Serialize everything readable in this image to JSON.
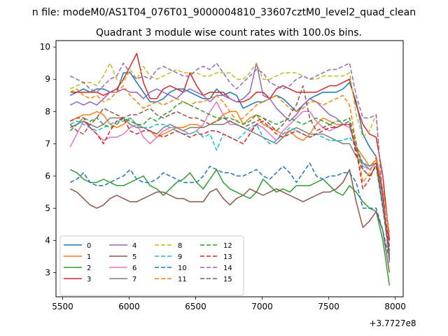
{
  "chart_data": {
    "type": "line",
    "suptitle": "n file: modeM0/AS1T04_076T01_9000004810_33607cztM0_level2_quad_clean",
    "title": "Quadrant 3 module wise count rates with 100.0s bins.",
    "xlabel": "",
    "ylabel": "",
    "offset_label": "+3.7727e8",
    "xlim": [
      5450,
      8060
    ],
    "ylim": [
      2.25,
      10.2
    ],
    "xticks": [
      5500,
      6000,
      6500,
      7000,
      7500,
      8000
    ],
    "yticks": [
      3,
      4,
      5,
      6,
      7,
      8,
      9,
      10
    ],
    "legend_position": "lower-left",
    "x": [
      5557,
      5607,
      5657,
      5707,
      5757,
      5807,
      5857,
      5907,
      5957,
      6007,
      6057,
      6107,
      6157,
      6207,
      6257,
      6307,
      6357,
      6407,
      6457,
      6507,
      6557,
      6607,
      6657,
      6707,
      6757,
      6807,
      6857,
      6907,
      6957,
      7007,
      7057,
      7107,
      7157,
      7207,
      7257,
      7307,
      7357,
      7407,
      7457,
      7507,
      7557,
      7607,
      7657,
      7707,
      7757,
      7807,
      7857,
      7907,
      7957
    ],
    "series": [
      {
        "name": "0",
        "color": "#1f77b4",
        "dash": "",
        "values": [
          8.5,
          8.6,
          8.7,
          8.6,
          8.7,
          8.7,
          8.6,
          8.6,
          9.2,
          9.2,
          8.9,
          8.6,
          8.3,
          8.3,
          8.4,
          8.6,
          8.7,
          8.7,
          8.6,
          8.5,
          8.4,
          8.4,
          8.7,
          8.5,
          8.6,
          8.5,
          8.1,
          8.2,
          8.3,
          8.3,
          8.4,
          8.5,
          8.4,
          8.2,
          8.0,
          8.2,
          8.4,
          8.5,
          8.6,
          8.6,
          8.6,
          8.7,
          8.9,
          8.3,
          7.3,
          6.9,
          6.6,
          5.5,
          3.4
        ]
      },
      {
        "name": "1",
        "color": "#ff7f0e",
        "dash": "",
        "values": [
          7.7,
          7.8,
          7.9,
          7.9,
          8.0,
          7.9,
          7.6,
          7.5,
          7.6,
          7.8,
          7.6,
          7.5,
          7.4,
          7.2,
          7.3,
          7.4,
          7.5,
          7.5,
          7.6,
          7.6,
          7.5,
          7.6,
          7.7,
          7.9,
          8.0,
          8.0,
          7.6,
          7.8,
          7.9,
          7.6,
          7.5,
          7.4,
          7.3,
          7.4,
          7.2,
          7.1,
          7.3,
          7.6,
          7.8,
          7.7,
          7.6,
          7.6,
          7.6,
          6.9,
          6.6,
          6.3,
          6.5,
          5.3,
          3.5
        ]
      },
      {
        "name": "2",
        "color": "#2ca02c",
        "dash": "",
        "values": [
          6.2,
          6.1,
          5.9,
          5.8,
          5.8,
          5.9,
          5.8,
          5.7,
          5.7,
          5.8,
          5.9,
          6.0,
          5.7,
          5.6,
          5.4,
          5.6,
          5.8,
          5.9,
          6.1,
          5.8,
          5.6,
          5.9,
          6.2,
          5.8,
          5.6,
          5.5,
          5.4,
          5.3,
          5.5,
          5.9,
          5.7,
          5.5,
          5.6,
          5.5,
          5.7,
          5.7,
          5.7,
          5.8,
          5.9,
          5.7,
          5.5,
          5.4,
          5.7,
          5.5,
          5.2,
          5.0,
          4.9,
          4.0,
          2.6
        ]
      },
      {
        "name": "3",
        "color": "#d62728",
        "dash": "",
        "values": [
          8.6,
          8.6,
          8.6,
          8.6,
          8.6,
          8.5,
          8.6,
          8.7,
          9.0,
          9.4,
          9.8,
          8.9,
          8.4,
          8.4,
          8.7,
          8.8,
          8.7,
          8.6,
          9.2,
          8.8,
          8.5,
          8.6,
          8.6,
          8.6,
          8.4,
          8.3,
          8.3,
          8.4,
          8.6,
          8.6,
          8.4,
          8.7,
          8.8,
          8.7,
          8.6,
          8.6,
          8.6,
          8.6,
          8.7,
          8.8,
          8.8,
          8.9,
          9.0,
          8.2,
          7.6,
          7.3,
          7.2,
          6.0,
          4.0
        ]
      },
      {
        "name": "4",
        "color": "#9467bd",
        "dash": "",
        "values": [
          8.2,
          8.3,
          8.2,
          8.3,
          8.2,
          8.4,
          8.6,
          8.6,
          8.7,
          8.6,
          8.6,
          8.4,
          8.6,
          8.7,
          8.6,
          8.5,
          8.4,
          8.6,
          8.7,
          8.6,
          8.5,
          8.3,
          8.5,
          8.5,
          8.4,
          8.3,
          8.4,
          8.6,
          9.5,
          8.5,
          8.4,
          8.1,
          7.9,
          7.7,
          7.9,
          8.2,
          8.4,
          8.3,
          8.1,
          7.9,
          7.8,
          7.6,
          7.6,
          6.8,
          6.4,
          6.2,
          6.4,
          5.2,
          3.8
        ]
      },
      {
        "name": "5",
        "color": "#8c564b",
        "dash": "",
        "values": [
          5.6,
          5.5,
          5.3,
          5.1,
          5.0,
          5.1,
          5.3,
          5.4,
          5.3,
          5.2,
          5.2,
          5.3,
          5.4,
          5.5,
          5.5,
          5.4,
          5.3,
          5.3,
          5.2,
          5.2,
          5.2,
          5.5,
          5.6,
          5.3,
          5.1,
          5.3,
          5.4,
          5.6,
          5.5,
          5.4,
          5.5,
          5.6,
          5.5,
          5.4,
          5.3,
          5.2,
          5.3,
          5.4,
          5.5,
          5.5,
          5.6,
          5.8,
          6.2,
          5.2,
          4.4,
          4.6,
          4.9,
          4.3,
          3.0
        ]
      },
      {
        "name": "6",
        "color": "#e377c2",
        "dash": "",
        "values": [
          6.9,
          7.3,
          7.7,
          7.5,
          7.3,
          7.1,
          7.2,
          7.2,
          7.3,
          7.5,
          7.6,
          7.2,
          7.0,
          7.2,
          7.4,
          7.5,
          7.5,
          7.4,
          7.3,
          7.4,
          7.6,
          8.0,
          8.3,
          7.9,
          7.6,
          7.6,
          7.5,
          7.4,
          7.6,
          7.5,
          7.3,
          7.1,
          7.4,
          7.6,
          7.8,
          8.0,
          8.0,
          7.7,
          7.5,
          7.4,
          7.5,
          7.6,
          7.5,
          6.9,
          6.3,
          6.2,
          6.4,
          5.3,
          3.6
        ]
      },
      {
        "name": "7",
        "color": "#7f7f7f",
        "dash": "",
        "values": [
          7.5,
          7.6,
          7.7,
          7.6,
          7.5,
          7.6,
          7.8,
          7.8,
          7.8,
          7.6,
          7.5,
          7.5,
          7.4,
          7.3,
          7.5,
          7.6,
          7.5,
          7.4,
          7.5,
          7.5,
          7.5,
          7.6,
          7.6,
          7.6,
          7.7,
          7.6,
          7.5,
          7.4,
          7.3,
          7.2,
          7.1,
          7.0,
          7.2,
          7.4,
          7.5,
          7.4,
          7.3,
          7.3,
          7.3,
          7.2,
          7.1,
          7.0,
          7.0,
          6.6,
          6.4,
          6.3,
          6.4,
          5.4,
          3.4
        ]
      },
      {
        "name": "8",
        "color": "#bcbd22",
        "dash": "6,3",
        "values": [
          8.7,
          8.8,
          8.9,
          8.9,
          8.8,
          9.1,
          9.5,
          9.0,
          8.9,
          9.3,
          9.0,
          9.4,
          9.1,
          9.0,
          9.1,
          9.2,
          9.3,
          9.2,
          9.2,
          9.2,
          9.1,
          9.1,
          9.2,
          9.2,
          9.2,
          9.0,
          9.0,
          9.2,
          9.5,
          9.0,
          9.0,
          9.1,
          9.2,
          9.2,
          9.2,
          9.1,
          9.0,
          9.0,
          9.1,
          9.1,
          9.1,
          9.1,
          9.2,
          7.9,
          7.2,
          7.4,
          7.9,
          5.2,
          3.5
        ]
      },
      {
        "name": "9",
        "color": "#17becf",
        "dash": "6,3",
        "values": [
          7.6,
          7.7,
          7.6,
          7.5,
          7.4,
          7.5,
          7.6,
          7.7,
          7.7,
          7.8,
          7.6,
          7.5,
          7.5,
          7.6,
          7.6,
          7.5,
          7.4,
          7.3,
          7.3,
          7.4,
          7.2,
          7.3,
          6.8,
          7.3,
          7.2,
          7.1,
          7.3,
          7.5,
          7.6,
          7.2,
          7.0,
          7.1,
          7.3,
          7.5,
          7.4,
          7.3,
          7.2,
          7.3,
          7.2,
          7.1,
          7.1,
          7.1,
          7.2,
          6.9,
          6.4,
          6.3,
          6.4,
          5.1,
          3.4
        ]
      },
      {
        "name": "10",
        "color": "#1f77b4",
        "dash": "6,3",
        "values": [
          5.8,
          5.9,
          6.1,
          5.8,
          5.7,
          5.7,
          5.8,
          5.9,
          6.0,
          6.2,
          5.9,
          5.8,
          5.8,
          5.9,
          6.1,
          6.0,
          5.9,
          5.8,
          5.8,
          5.8,
          6.0,
          6.3,
          6.2,
          6.1,
          6.1,
          6.0,
          6.0,
          6.1,
          6.2,
          6.0,
          5.9,
          6.1,
          6.3,
          6.1,
          5.8,
          6.1,
          6.4,
          6.0,
          5.9,
          6.0,
          6.0,
          6.1,
          6.1,
          5.8,
          5.0,
          5.0,
          5.0,
          4.3,
          3.4
        ]
      },
      {
        "name": "11",
        "color": "#ff7f0e",
        "dash": "6,3",
        "values": [
          8.6,
          8.7,
          8.5,
          8.4,
          8.5,
          8.3,
          8.4,
          8.6,
          8.8,
          8.5,
          8.3,
          8.1,
          8.2,
          8.3,
          8.2,
          8.3,
          8.4,
          8.3,
          8.2,
          8.3,
          8.3,
          8.4,
          8.5,
          8.3,
          8.0,
          7.7,
          7.8,
          8.0,
          8.2,
          8.3,
          8.4,
          8.5,
          8.3,
          8.1,
          8.0,
          8.1,
          8.3,
          8.3,
          8.2,
          8.3,
          8.4,
          8.5,
          8.2,
          7.0,
          5.8,
          6.1,
          6.6,
          5.6,
          4.2
        ]
      },
      {
        "name": "12",
        "color": "#2ca02c",
        "dash": "6,3",
        "values": [
          7.4,
          7.6,
          7.8,
          7.7,
          7.8,
          7.6,
          7.5,
          7.6,
          7.8,
          7.7,
          7.6,
          7.6,
          7.8,
          7.7,
          7.9,
          8.0,
          8.2,
          8.3,
          8.2,
          8.1,
          8.0,
          7.9,
          7.8,
          7.8,
          7.8,
          7.7,
          7.6,
          7.7,
          7.9,
          7.8,
          7.7,
          7.6,
          7.7,
          7.8,
          7.7,
          7.6,
          7.7,
          7.8,
          7.7,
          7.6,
          7.7,
          7.7,
          7.8,
          7.0,
          6.2,
          6.0,
          6.3,
          5.0,
          3.6
        ]
      },
      {
        "name": "13",
        "color": "#d62728",
        "dash": "6,3",
        "values": [
          7.7,
          7.8,
          7.8,
          7.5,
          7.3,
          7.0,
          7.4,
          7.7,
          7.8,
          7.4,
          7.3,
          7.4,
          7.4,
          7.3,
          7.2,
          7.3,
          7.4,
          7.3,
          7.2,
          7.3,
          7.3,
          7.4,
          7.4,
          7.3,
          7.2,
          7.1,
          7.0,
          7.3,
          7.6,
          7.7,
          7.5,
          7.3,
          7.2,
          7.3,
          7.4,
          7.3,
          7.2,
          7.3,
          7.4,
          7.5,
          7.5,
          7.6,
          7.6,
          6.8,
          5.6,
          5.9,
          6.4,
          5.4,
          3.7
        ]
      },
      {
        "name": "14",
        "color": "#9467bd",
        "dash": "6,3",
        "values": [
          9.1,
          9.0,
          8.9,
          8.7,
          8.6,
          8.8,
          9.0,
          9.1,
          9.5,
          9.2,
          9.0,
          9.1,
          9.0,
          9.3,
          9.4,
          9.3,
          9.2,
          9.1,
          9.1,
          9.3,
          9.4,
          9.3,
          9.5,
          9.2,
          8.9,
          8.7,
          8.9,
          9.1,
          9.3,
          9.2,
          8.9,
          8.8,
          8.7,
          8.8,
          9.0,
          9.1,
          9.0,
          9.1,
          9.2,
          9.3,
          9.3,
          9.4,
          9.5,
          8.5,
          7.8,
          7.8,
          7.9,
          5.3,
          3.3
        ]
      },
      {
        "name": "15",
        "color": "#8c564b",
        "dash": "6,3",
        "values": [
          7.6,
          7.4,
          7.3,
          7.6,
          7.8,
          8.1,
          8.0,
          7.9,
          7.8,
          7.9,
          7.9,
          8.0,
          8.1,
          7.9,
          7.8,
          7.9,
          8.0,
          7.9,
          7.8,
          7.8,
          7.7,
          7.6,
          7.7,
          7.8,
          7.7,
          7.6,
          7.5,
          7.6,
          7.7,
          7.8,
          7.6,
          7.4,
          7.6,
          7.9,
          8.2,
          8.8,
          7.8,
          7.4,
          7.5,
          7.6,
          7.5,
          7.6,
          7.7,
          6.6,
          6.2,
          6.0,
          6.3,
          5.0,
          3.5
        ]
      }
    ]
  }
}
